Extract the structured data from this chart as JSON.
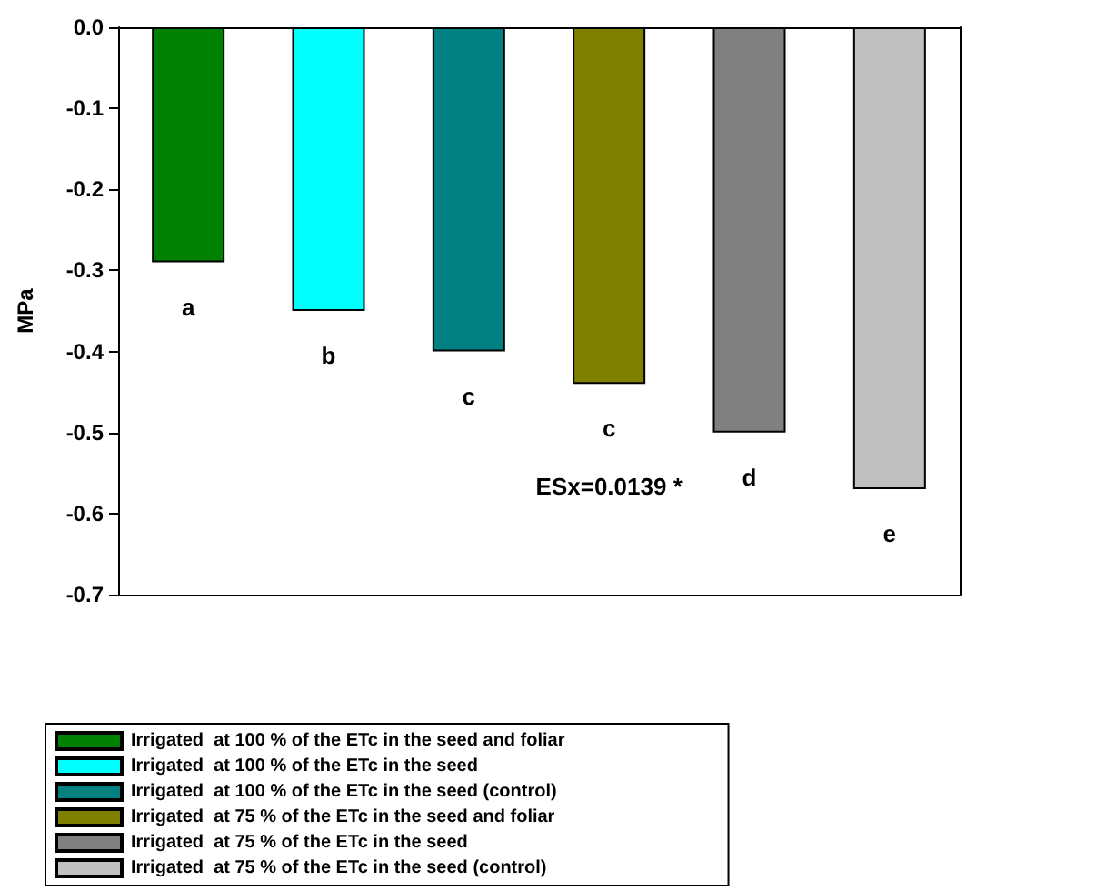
{
  "chart_data": {
    "type": "bar",
    "ylabel": "MPa",
    "categories": [
      null,
      null,
      null,
      null,
      null,
      null
    ],
    "series": [
      {
        "name": "Irrigated  at 100 % of the ETc in the seed and foliar",
        "color": "#008000",
        "values": [
          -0.29,
          null,
          null,
          null,
          null,
          null
        ]
      },
      {
        "name": "Irrigated  at 100 % of the ETc in the seed",
        "color": "#00ffff",
        "values": [
          null,
          -0.35,
          null,
          null,
          null,
          null
        ]
      },
      {
        "name": "Irrigated  at 100 % of the ETc in the seed (control)",
        "color": "#008080",
        "values": [
          null,
          null,
          -0.4,
          null,
          null,
          null
        ]
      },
      {
        "name": "Irrigated  at 75 % of the ETc in the seed and foliar",
        "color": "#808000",
        "values": [
          null,
          null,
          null,
          -0.44,
          null,
          null
        ]
      },
      {
        "name": "Irrigated  at 75 % of the ETc in the seed",
        "color": "#808080",
        "values": [
          null,
          null,
          null,
          null,
          -0.5,
          null
        ]
      },
      {
        "name": "Irrigated  at 75 % of the ETc in the seed (control)",
        "color": "#c0c0c0",
        "values": [
          null,
          null,
          null,
          null,
          null,
          -0.57
        ]
      }
    ],
    "annotations": [
      "a",
      "b",
      "c",
      "c",
      "d",
      "e",
      {
        "text": "ESx=0.0139 *"
      }
    ],
    "ylim": [
      -0.7,
      0
    ],
    "yticks": [
      {
        "value": 0,
        "label": "0.0"
      },
      -0.1,
      -0.2,
      -0.3,
      -0.4,
      -0.5,
      -0.6,
      -0.7
    ],
    "grid": false,
    "legend": "bottom"
  }
}
